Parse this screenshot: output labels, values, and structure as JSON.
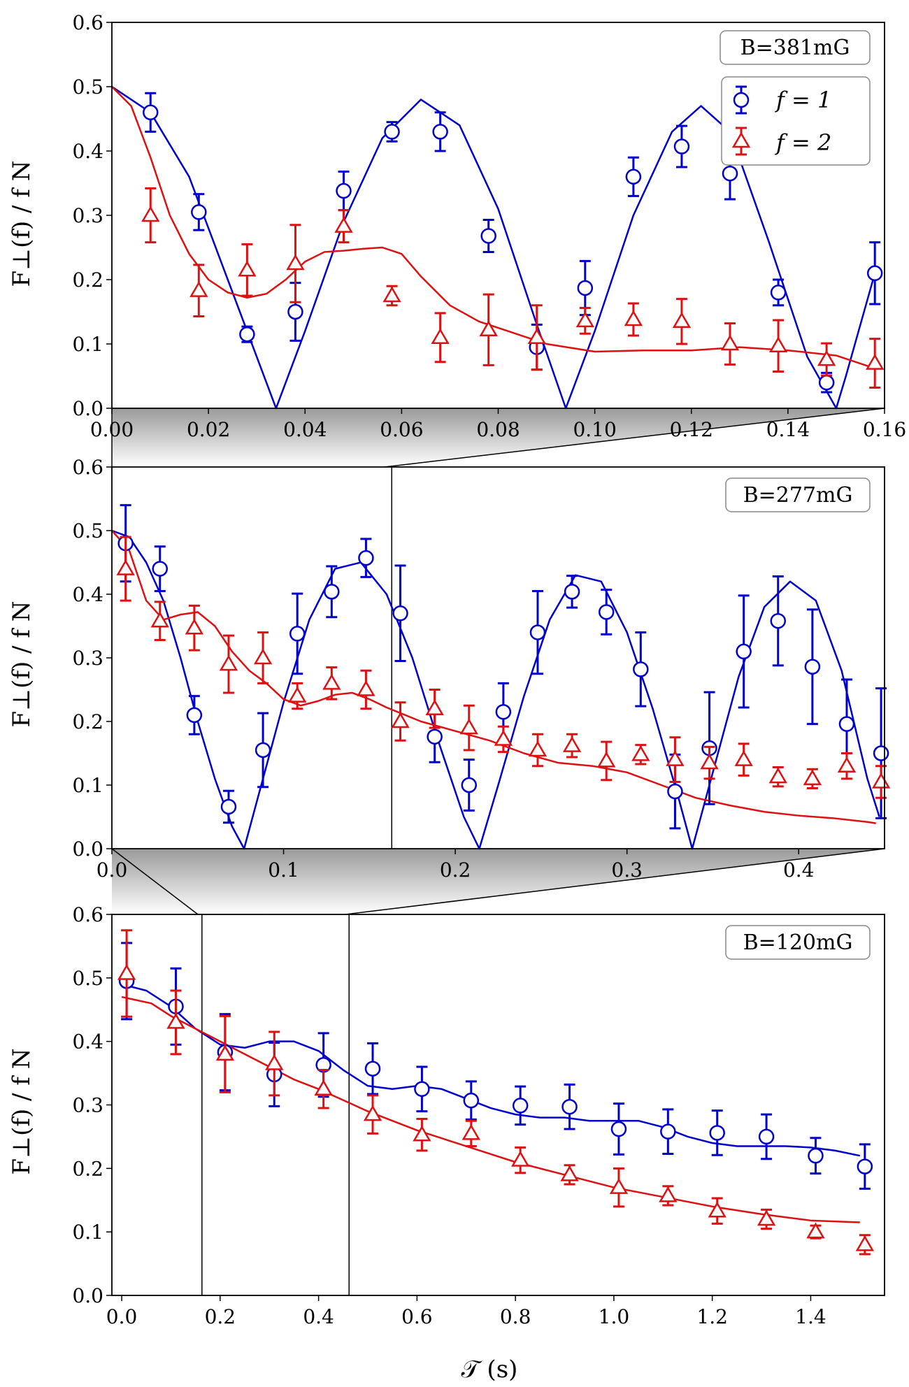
{
  "colors": {
    "f1": "#0000cc",
    "f2": "#dd1111"
  },
  "ylabel": "F⊥(f) / f N",
  "xlabel": "𝒯 (s)",
  "legend": {
    "f1": "f = 1",
    "f2": "f = 2"
  },
  "chart_data": [
    {
      "type": "scatter",
      "title": "B=381mG",
      "xlim": [
        0,
        0.16
      ],
      "ylim": [
        0,
        0.6
      ],
      "xticks": [
        "0.00",
        "0.02",
        "0.04",
        "0.06",
        "0.08",
        "0.10",
        "0.12",
        "0.14",
        "0.16"
      ],
      "yticks": [
        "0.0",
        "0.1",
        "0.2",
        "0.3",
        "0.4",
        "0.5",
        "0.6"
      ],
      "series": [
        {
          "name": "f = 1",
          "x": [
            0.008,
            0.018,
            0.028,
            0.038,
            0.048,
            0.058,
            0.068,
            0.078,
            0.088,
            0.098,
            0.108,
            0.118,
            0.128,
            0.138,
            0.148,
            0.158
          ],
          "y": [
            0.46,
            0.305,
            0.115,
            0.15,
            0.338,
            0.43,
            0.43,
            0.268,
            0.095,
            0.187,
            0.36,
            0.407,
            0.365,
            0.18,
            0.04,
            0.21
          ],
          "err": [
            0.03,
            0.028,
            0.012,
            0.045,
            0.03,
            0.015,
            0.03,
            0.025,
            0.035,
            0.042,
            0.03,
            0.032,
            0.04,
            0.02,
            0.015,
            0.048
          ]
        },
        {
          "name": "f = 2",
          "x": [
            0.008,
            0.018,
            0.028,
            0.038,
            0.048,
            0.058,
            0.068,
            0.078,
            0.088,
            0.098,
            0.108,
            0.118,
            0.128,
            0.138,
            0.148,
            0.158
          ],
          "y": [
            0.3,
            0.183,
            0.215,
            0.225,
            0.283,
            0.175,
            0.11,
            0.122,
            0.11,
            0.136,
            0.138,
            0.135,
            0.1,
            0.097,
            0.076,
            0.07
          ],
          "err": [
            0.042,
            0.04,
            0.04,
            0.06,
            0.025,
            0.015,
            0.038,
            0.055,
            0.05,
            0.02,
            0.025,
            0.035,
            0.032,
            0.04,
            0.025,
            0.038
          ]
        }
      ],
      "fits": [
        {
          "name": "f = 1 fit",
          "x": [
            0,
            0.008,
            0.016,
            0.024,
            0.03,
            0.034,
            0.036,
            0.04,
            0.048,
            0.056,
            0.064,
            0.072,
            0.08,
            0.088,
            0.094,
            0.096,
            0.1,
            0.108,
            0.116,
            0.122,
            0.128,
            0.136,
            0.144,
            0.15,
            0.152,
            0.158
          ],
          "y": [
            0.5,
            0.46,
            0.36,
            0.2,
            0.08,
            0.0,
            0.04,
            0.12,
            0.29,
            0.42,
            0.48,
            0.44,
            0.31,
            0.13,
            0.0,
            0.04,
            0.12,
            0.3,
            0.43,
            0.47,
            0.43,
            0.26,
            0.08,
            0.0,
            0.05,
            0.21
          ]
        },
        {
          "name": "f = 2 fit",
          "x": [
            0,
            0.004,
            0.008,
            0.012,
            0.016,
            0.02,
            0.024,
            0.028,
            0.032,
            0.036,
            0.04,
            0.044,
            0.048,
            0.052,
            0.056,
            0.06,
            0.064,
            0.07,
            0.076,
            0.082,
            0.09,
            0.1,
            0.11,
            0.12,
            0.13,
            0.14,
            0.15,
            0.158
          ],
          "y": [
            0.5,
            0.47,
            0.39,
            0.3,
            0.24,
            0.2,
            0.18,
            0.172,
            0.178,
            0.2,
            0.228,
            0.243,
            0.245,
            0.248,
            0.25,
            0.24,
            0.205,
            0.16,
            0.135,
            0.12,
            0.1,
            0.088,
            0.09,
            0.09,
            0.095,
            0.09,
            0.082,
            0.062
          ]
        }
      ]
    },
    {
      "type": "scatter",
      "title": "B=277mG",
      "xlim": [
        0,
        0.45
      ],
      "ylim": [
        0,
        0.6
      ],
      "xticks": [
        "0.0",
        "0.1",
        "0.2",
        "0.3",
        "0.4"
      ],
      "yticks": [
        "0.0",
        "0.1",
        "0.2",
        "0.3",
        "0.4",
        "0.5",
        "0.6"
      ],
      "series": [
        {
          "name": "f = 1",
          "x": [
            0.008,
            0.028,
            0.048,
            0.068,
            0.088,
            0.108,
            0.128,
            0.148,
            0.168,
            0.188,
            0.208,
            0.228,
            0.248,
            0.268,
            0.288,
            0.308,
            0.328,
            0.348,
            0.368,
            0.388,
            0.408,
            0.428,
            0.448
          ],
          "y": [
            0.48,
            0.44,
            0.21,
            0.066,
            0.155,
            0.338,
            0.404,
            0.457,
            0.37,
            0.176,
            0.1,
            0.215,
            0.34,
            0.404,
            0.372,
            0.282,
            0.09,
            0.158,
            0.31,
            0.358,
            0.286,
            0.196,
            0.15
          ],
          "err": [
            0.06,
            0.035,
            0.03,
            0.025,
            0.058,
            0.063,
            0.04,
            0.03,
            0.075,
            0.04,
            0.04,
            0.045,
            0.065,
            0.025,
            0.035,
            0.058,
            0.058,
            0.088,
            0.088,
            0.07,
            0.09,
            0.07,
            0.102
          ]
        },
        {
          "name": "f = 2",
          "x": [
            0.008,
            0.028,
            0.048,
            0.068,
            0.088,
            0.108,
            0.128,
            0.148,
            0.168,
            0.188,
            0.208,
            0.228,
            0.248,
            0.268,
            0.288,
            0.308,
            0.328,
            0.348,
            0.368,
            0.388,
            0.408,
            0.428,
            0.448
          ],
          "y": [
            0.44,
            0.358,
            0.347,
            0.29,
            0.3,
            0.24,
            0.26,
            0.25,
            0.2,
            0.22,
            0.19,
            0.172,
            0.155,
            0.162,
            0.138,
            0.148,
            0.14,
            0.135,
            0.14,
            0.113,
            0.11,
            0.13,
            0.105
          ],
          "err": [
            0.05,
            0.03,
            0.035,
            0.045,
            0.04,
            0.02,
            0.025,
            0.03,
            0.03,
            0.03,
            0.035,
            0.02,
            0.025,
            0.018,
            0.03,
            0.015,
            0.035,
            0.025,
            0.025,
            0.015,
            0.015,
            0.02,
            0.025
          ]
        }
      ],
      "fits": [
        {
          "name": "f = 1 fit",
          "x": [
            0,
            0.01,
            0.02,
            0.03,
            0.04,
            0.05,
            0.06,
            0.07,
            0.077,
            0.085,
            0.1,
            0.115,
            0.13,
            0.145,
            0.16,
            0.175,
            0.19,
            0.205,
            0.214,
            0.225,
            0.24,
            0.255,
            0.27,
            0.285,
            0.3,
            0.315,
            0.33,
            0.338,
            0.35,
            0.365,
            0.38,
            0.395,
            0.41,
            0.425,
            0.44,
            0.447
          ],
          "y": [
            0.5,
            0.49,
            0.45,
            0.39,
            0.3,
            0.2,
            0.11,
            0.035,
            0.0,
            0.08,
            0.23,
            0.36,
            0.44,
            0.45,
            0.4,
            0.3,
            0.17,
            0.05,
            0.0,
            0.1,
            0.24,
            0.36,
            0.43,
            0.42,
            0.34,
            0.22,
            0.08,
            0.0,
            0.12,
            0.27,
            0.38,
            0.42,
            0.39,
            0.28,
            0.11,
            0.05
          ]
        },
        {
          "name": "f = 2 fit",
          "x": [
            0,
            0.01,
            0.02,
            0.03,
            0.04,
            0.05,
            0.06,
            0.07,
            0.08,
            0.09,
            0.1,
            0.11,
            0.12,
            0.13,
            0.14,
            0.15,
            0.16,
            0.18,
            0.2,
            0.22,
            0.24,
            0.26,
            0.28,
            0.3,
            0.32,
            0.34,
            0.36,
            0.38,
            0.4,
            0.42,
            0.44,
            0.445
          ],
          "y": [
            0.5,
            0.47,
            0.39,
            0.36,
            0.368,
            0.372,
            0.35,
            0.31,
            0.28,
            0.26,
            0.235,
            0.225,
            0.232,
            0.242,
            0.245,
            0.235,
            0.222,
            0.2,
            0.185,
            0.17,
            0.15,
            0.135,
            0.13,
            0.12,
            0.1,
            0.08,
            0.068,
            0.058,
            0.052,
            0.048,
            0.042,
            0.04
          ]
        }
      ]
    },
    {
      "type": "scatter",
      "title": "B=120mG",
      "xlim": [
        -0.02,
        1.55
      ],
      "ylim": [
        0,
        0.6
      ],
      "xticks": [
        "0.0",
        "0.2",
        "0.4",
        "0.6",
        "0.8",
        "1.0",
        "1.2",
        "1.4"
      ],
      "yticks": [
        "0.0",
        "0.1",
        "0.2",
        "0.3",
        "0.4",
        "0.5",
        "0.6"
      ],
      "series": [
        {
          "name": "f = 1",
          "x": [
            0.01,
            0.11,
            0.21,
            0.31,
            0.41,
            0.51,
            0.61,
            0.71,
            0.81,
            0.91,
            1.01,
            1.11,
            1.21,
            1.31,
            1.41,
            1.51
          ],
          "y": [
            0.495,
            0.455,
            0.383,
            0.348,
            0.363,
            0.357,
            0.325,
            0.307,
            0.299,
            0.297,
            0.262,
            0.258,
            0.256,
            0.25,
            0.22,
            0.203
          ],
          "err": [
            0.06,
            0.06,
            0.06,
            0.05,
            0.05,
            0.04,
            0.035,
            0.03,
            0.03,
            0.035,
            0.04,
            0.035,
            0.035,
            0.035,
            0.028,
            0.035
          ]
        },
        {
          "name": "f = 2",
          "x": [
            0.01,
            0.11,
            0.21,
            0.31,
            0.41,
            0.51,
            0.61,
            0.71,
            0.81,
            0.91,
            1.01,
            1.11,
            1.21,
            1.31,
            1.41,
            1.51
          ],
          "y": [
            0.507,
            0.43,
            0.38,
            0.365,
            0.325,
            0.285,
            0.253,
            0.255,
            0.213,
            0.19,
            0.17,
            0.157,
            0.133,
            0.12,
            0.1,
            0.08
          ],
          "err": [
            0.068,
            0.05,
            0.06,
            0.05,
            0.03,
            0.03,
            0.025,
            0.02,
            0.02,
            0.015,
            0.03,
            0.015,
            0.02,
            0.015,
            0.01,
            0.015
          ]
        }
      ],
      "fits": [
        {
          "name": "f = 1 fit",
          "x": [
            0,
            0.05,
            0.1,
            0.15,
            0.2,
            0.25,
            0.3,
            0.35,
            0.4,
            0.45,
            0.5,
            0.55,
            0.6,
            0.65,
            0.7,
            0.75,
            0.8,
            0.85,
            0.9,
            0.95,
            1.0,
            1.05,
            1.1,
            1.15,
            1.2,
            1.25,
            1.3,
            1.35,
            1.4,
            1.45,
            1.5
          ],
          "y": [
            0.49,
            0.48,
            0.455,
            0.42,
            0.395,
            0.39,
            0.4,
            0.4,
            0.385,
            0.355,
            0.33,
            0.325,
            0.33,
            0.325,
            0.31,
            0.295,
            0.285,
            0.28,
            0.28,
            0.275,
            0.275,
            0.275,
            0.265,
            0.25,
            0.24,
            0.235,
            0.235,
            0.235,
            0.233,
            0.228,
            0.22
          ]
        },
        {
          "name": "f = 2 fit",
          "x": [
            0,
            0.03,
            0.06,
            0.1,
            0.15,
            0.2,
            0.25,
            0.3,
            0.35,
            0.4,
            0.5,
            0.6,
            0.7,
            0.8,
            0.9,
            1.0,
            1.1,
            1.2,
            1.3,
            1.4,
            1.5
          ],
          "y": [
            0.47,
            0.465,
            0.46,
            0.44,
            0.42,
            0.4,
            0.38,
            0.36,
            0.34,
            0.325,
            0.29,
            0.26,
            0.235,
            0.21,
            0.19,
            0.17,
            0.155,
            0.14,
            0.128,
            0.118,
            0.115
          ]
        }
      ]
    }
  ]
}
